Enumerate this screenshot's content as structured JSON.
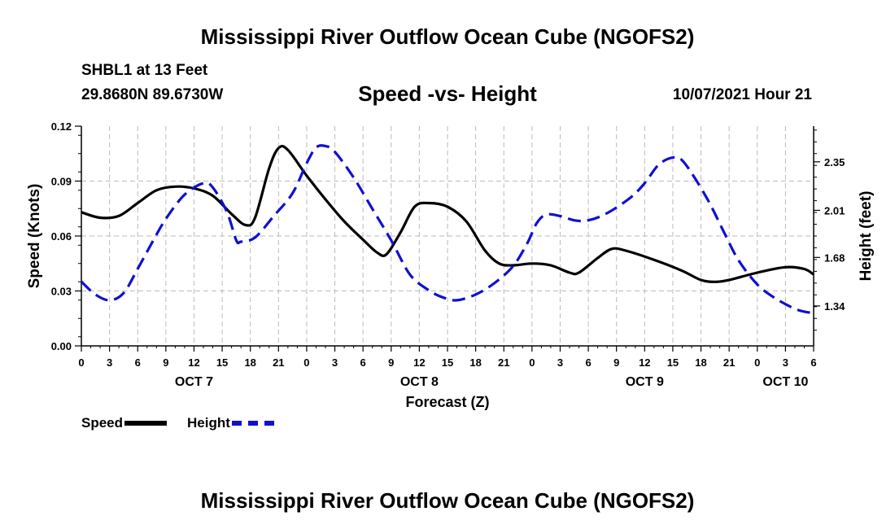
{
  "header": {
    "title_top": "Mississippi River Outflow Ocean Cube (NGOFS2)",
    "title_bottom": "Mississippi River Outflow Ocean Cube (NGOFS2)",
    "station": "SHBL1 at 13 Feet",
    "coords": "29.8680N  89.6730W",
    "subtitle": "Speed -vs- Height",
    "datetime": "10/07/2021 Hour 21"
  },
  "legend": {
    "speed_label": "Speed",
    "height_label": "Height"
  },
  "colors": {
    "speed": "#000000",
    "height": "#1010d0",
    "grid": "#bbbbbb"
  },
  "chart_data": {
    "type": "line",
    "title": "Speed -vs- Height",
    "xlabel": "Forecast (Z)",
    "ylabel": "Speed (Knots)",
    "y2label": "Height (feet)",
    "x_unit": "hours since Oct 7 00Z",
    "xlim": [
      0,
      78
    ],
    "ylim": [
      0,
      0.12
    ],
    "y2lim": [
      1.06,
      2.6
    ],
    "x_ticks": [
      0,
      3,
      6,
      9,
      12,
      15,
      18,
      21,
      24,
      27,
      30,
      33,
      36,
      39,
      42,
      45,
      48,
      51,
      54,
      57,
      60,
      63,
      66,
      69,
      72,
      75,
      78
    ],
    "x_tick_labels": [
      "0",
      "3",
      "6",
      "9",
      "12",
      "15",
      "18",
      "21",
      "0",
      "3",
      "6",
      "9",
      "12",
      "15",
      "18",
      "21",
      "0",
      "3",
      "6",
      "9",
      "12",
      "15",
      "18",
      "21",
      "0",
      "3",
      "6"
    ],
    "day_labels": [
      {
        "x": 12,
        "label": "OCT 7"
      },
      {
        "x": 36,
        "label": "OCT 8"
      },
      {
        "x": 60,
        "label": "OCT 9"
      },
      {
        "x": 75,
        "label": "OCT 10"
      }
    ],
    "y_ticks": [
      0,
      0.03,
      0.06,
      0.09,
      0.12
    ],
    "y_tick_labels": [
      "0.00",
      "0.03",
      "0.06",
      "0.09",
      "0.12"
    ],
    "y2_ticks": [
      1.34,
      1.68,
      2.01,
      2.35
    ],
    "y2_tick_labels": [
      "1.34",
      "1.68",
      "2.01",
      "2.35"
    ],
    "grid": true,
    "series": [
      {
        "name": "Speed",
        "axis": "left",
        "style": "solid",
        "points": [
          [
            0,
            0.073
          ],
          [
            2,
            0.07
          ],
          [
            4,
            0.071
          ],
          [
            6,
            0.078
          ],
          [
            8,
            0.085
          ],
          [
            10,
            0.087
          ],
          [
            12,
            0.086
          ],
          [
            14,
            0.082
          ],
          [
            16,
            0.072
          ],
          [
            17.5,
            0.066
          ],
          [
            18.5,
            0.07
          ],
          [
            20,
            0.097
          ],
          [
            21,
            0.108
          ],
          [
            22,
            0.107
          ],
          [
            24,
            0.093
          ],
          [
            26,
            0.08
          ],
          [
            28,
            0.068
          ],
          [
            30,
            0.058
          ],
          [
            31.5,
            0.051
          ],
          [
            32.5,
            0.05
          ],
          [
            34,
            0.062
          ],
          [
            35.5,
            0.076
          ],
          [
            37,
            0.078
          ],
          [
            39,
            0.076
          ],
          [
            41,
            0.068
          ],
          [
            43,
            0.052
          ],
          [
            44.5,
            0.045
          ],
          [
            46,
            0.044
          ],
          [
            48,
            0.045
          ],
          [
            50,
            0.044
          ],
          [
            52,
            0.04
          ],
          [
            53,
            0.04
          ],
          [
            55,
            0.048
          ],
          [
            56.5,
            0.053
          ],
          [
            58,
            0.052
          ],
          [
            61,
            0.047
          ],
          [
            64,
            0.041
          ],
          [
            66,
            0.036
          ],
          [
            67.5,
            0.035
          ],
          [
            69,
            0.036
          ],
          [
            72,
            0.04
          ],
          [
            75,
            0.043
          ],
          [
            77,
            0.042
          ],
          [
            78,
            0.039
          ]
        ]
      },
      {
        "name": "Height",
        "axis": "right",
        "style": "dashed",
        "points": [
          [
            0,
            1.51
          ],
          [
            1.5,
            1.42
          ],
          [
            3,
            1.38
          ],
          [
            4.5,
            1.43
          ],
          [
            6,
            1.6
          ],
          [
            7.5,
            1.78
          ],
          [
            9,
            1.95
          ],
          [
            11,
            2.12
          ],
          [
            13,
            2.2
          ],
          [
            14,
            2.17
          ],
          [
            15.5,
            2.0
          ],
          [
            16.5,
            1.8
          ],
          [
            17,
            1.79
          ],
          [
            18.5,
            1.82
          ],
          [
            20.5,
            1.97
          ],
          [
            22.5,
            2.13
          ],
          [
            24,
            2.34
          ],
          [
            25,
            2.45
          ],
          [
            26,
            2.46
          ],
          [
            27,
            2.42
          ],
          [
            29,
            2.24
          ],
          [
            31,
            2.02
          ],
          [
            33,
            1.8
          ],
          [
            35,
            1.56
          ],
          [
            37,
            1.45
          ],
          [
            38.5,
            1.4
          ],
          [
            40,
            1.38
          ],
          [
            42,
            1.42
          ],
          [
            44,
            1.5
          ],
          [
            46,
            1.62
          ],
          [
            47.5,
            1.78
          ],
          [
            48.5,
            1.92
          ],
          [
            49.5,
            1.98
          ],
          [
            51,
            1.97
          ],
          [
            52.5,
            1.94
          ],
          [
            54,
            1.94
          ],
          [
            56,
            1.99
          ],
          [
            58.5,
            2.1
          ],
          [
            60,
            2.2
          ],
          [
            61.5,
            2.33
          ],
          [
            63,
            2.38
          ],
          [
            64,
            2.36
          ],
          [
            65.5,
            2.22
          ],
          [
            67,
            2.05
          ],
          [
            68.5,
            1.85
          ],
          [
            70,
            1.66
          ],
          [
            72,
            1.49
          ],
          [
            74,
            1.39
          ],
          [
            76,
            1.32
          ],
          [
            77,
            1.3
          ],
          [
            78,
            1.29
          ]
        ]
      }
    ]
  }
}
